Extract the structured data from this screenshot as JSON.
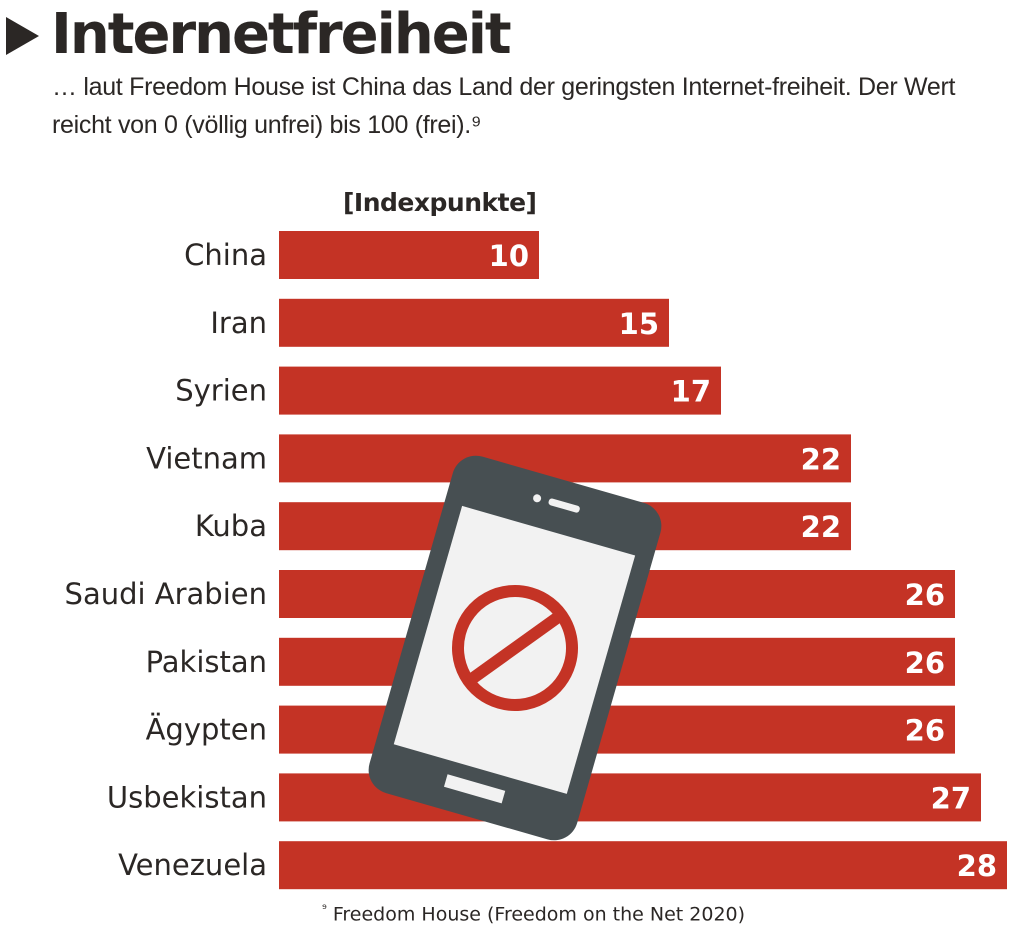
{
  "header": {
    "title": "Internetfreiheit",
    "subtitle": "… laut Freedom House ist China das Land der geringsten Internet-freiheit. Der Wert reicht von 0 (völlig unfrei) bis 100 (frei).⁹"
  },
  "chart_data": {
    "type": "bar",
    "orientation": "horizontal",
    "title": "Internetfreiheit",
    "unit_label": "[Indexpunkte]",
    "categories": [
      "China",
      "Iran",
      "Syrien",
      "Vietnam",
      "Kuba",
      "Saudi Arabien",
      "Pakistan",
      "Ägypten",
      "Usbekistan",
      "Venezuela"
    ],
    "values": [
      10,
      15,
      17,
      22,
      22,
      26,
      26,
      26,
      27,
      28
    ],
    "xlabel": "",
    "ylabel": "",
    "xlim": [
      0,
      28
    ],
    "grid": false,
    "legend": "none",
    "bar_color": "#c43325",
    "value_label_color": "#ffffff",
    "illustration": "smartphone-with-prohibition-sign"
  },
  "footer": {
    "source_marker": "⁹",
    "source": "Freedom House (Freedom on the Net 2020)"
  },
  "colors": {
    "text": "#2b2725",
    "bar": "#c43325",
    "phone_body": "#474f52",
    "phone_screen": "#f2f2f2",
    "prohibition": "#c43325"
  }
}
